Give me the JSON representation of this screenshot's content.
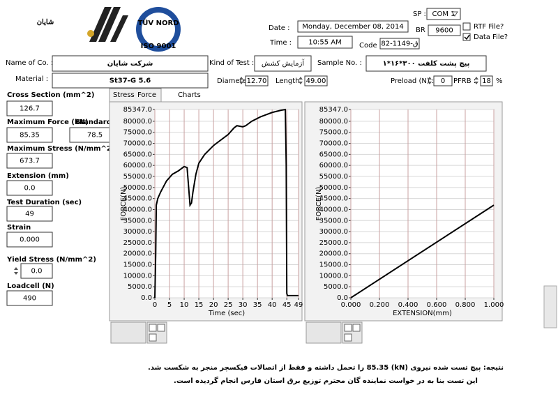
{
  "header": {
    "logo_text": "شایان",
    "tuv_text": "TÜV NORD",
    "iso_text": "ISO 9001"
  },
  "settings": {
    "date_label": "Date :",
    "date": "Monday, December 08, 2014",
    "time_label": "Time :",
    "time": "10:55 AM",
    "code_label": "Code :",
    "code": "82-1149-ق",
    "sp_label": "SP :",
    "sp": "COM 1",
    "br_label": "BR :",
    "br": "9600",
    "rtf_label": "RTF File?",
    "rtf_checked": false,
    "data_label": "Data File?",
    "data_checked": true
  },
  "sample": {
    "company_label": "Name of Co. :",
    "company": "شرکت شایان",
    "kind_label": "Kind of Test :",
    "kind": "آزمایش کشش",
    "sample_label": "Sample No. :",
    "sample": "پیچ پشت کلفت ۳۰۰*۱۶*۱",
    "material_label": "Material :",
    "material": "St37-G 5.6",
    "diameter_label": "Diameter",
    "diameter": "12.70",
    "length_label": "Length",
    "length": "49.00",
    "preload_label": "Preload (N) :",
    "preload": "0",
    "pfrb_label": "PFRB :",
    "pfrb": "18",
    "pfrb_unit": "%"
  },
  "tabs": [
    "Stress",
    "Force",
    "Charts"
  ],
  "results": [
    {
      "label": "Cross Section (mm^2)",
      "value": "126.7"
    },
    {
      "label": "Maximum Force (kN)",
      "value": "85.35"
    },
    {
      "label": "Standard (kN)",
      "value": "78.5"
    },
    {
      "label": "Maximum Stress (N/mm^2)",
      "value": "673.7"
    },
    {
      "label": "Extension (mm)",
      "value": "0.0"
    },
    {
      "label": "Test Duration (sec)",
      "value": "49"
    },
    {
      "label": "Strain",
      "value": "0.000"
    },
    {
      "label": "Yield Stress (N/mm^2)",
      "value": "0.0"
    },
    {
      "label": "Loadcell (N)",
      "value": "490"
    }
  ],
  "chart_data": [
    {
      "type": "line",
      "xlabel": "Time (sec)",
      "ylabel": "FORCE(N)",
      "color": "#000000",
      "grid": true,
      "x": [
        0,
        0.3,
        0.5,
        1,
        2,
        4,
        6,
        8,
        10,
        11,
        12,
        12.5,
        13,
        14,
        15,
        17,
        20,
        23,
        25,
        27,
        28,
        30,
        31,
        33,
        36,
        40,
        43,
        44.5,
        44.8,
        45,
        45.2,
        47,
        49
      ],
      "values": [
        0,
        20000,
        42000,
        45000,
        48000,
        53000,
        56000,
        57500,
        59500,
        59000,
        42000,
        43000,
        48000,
        56000,
        61000,
        65000,
        69000,
        72000,
        74000,
        77000,
        78000,
        77500,
        78000,
        80000,
        82000,
        84000,
        85000,
        85347,
        60000,
        2000,
        1000,
        1000,
        1000
      ],
      "xlim": [
        0,
        49
      ],
      "xticks": [
        0,
        5,
        10,
        15,
        20,
        25,
        30,
        35,
        40,
        45,
        49
      ],
      "ylim": [
        0,
        85347
      ],
      "yticks": [
        {
          "value": 0,
          "label": "0.0"
        },
        {
          "value": 5000,
          "label": "5000.0"
        },
        {
          "value": 10000,
          "label": "10000.0"
        },
        {
          "value": 15000,
          "label": "15000.0"
        },
        {
          "value": 20000,
          "label": "20000.0"
        },
        {
          "value": 25000,
          "label": "25000.0"
        },
        {
          "value": 30000,
          "label": "30000.0"
        },
        {
          "value": 35000,
          "label": "35000.0"
        },
        {
          "value": 40000,
          "label": "40000.0"
        },
        {
          "value": 45000,
          "label": "45000.0"
        },
        {
          "value": 50000,
          "label": "50000.0"
        },
        {
          "value": 55000,
          "label": "55000.0"
        },
        {
          "value": 60000,
          "label": "60000.0"
        },
        {
          "value": 65000,
          "label": "65000.0"
        },
        {
          "value": 70000,
          "label": "70000.0"
        },
        {
          "value": 75000,
          "label": "75000.0"
        },
        {
          "value": 80000,
          "label": "80000.0"
        },
        {
          "value": 85347,
          "label": "85347.0"
        }
      ]
    },
    {
      "type": "line",
      "xlabel": "EXTENSION(mm)",
      "ylabel": "FORCE(N)",
      "color": "#000000",
      "grid": true,
      "x": [
        0,
        1
      ],
      "values": [
        0,
        42000
      ],
      "xlim": [
        0,
        1
      ],
      "xticks": [
        {
          "value": 0,
          "label": "0.000"
        },
        {
          "value": 0.2,
          "label": "0.200"
        },
        {
          "value": 0.4,
          "label": "0.400"
        },
        {
          "value": 0.6,
          "label": "0.600"
        },
        {
          "value": 0.8,
          "label": "0.800"
        },
        {
          "value": 1,
          "label": "1.000"
        }
      ],
      "ylim": [
        0,
        85347
      ],
      "yticks": [
        {
          "value": 0,
          "label": "0.0"
        },
        {
          "value": 5000,
          "label": "5000.0"
        },
        {
          "value": 10000,
          "label": "10000.0"
        },
        {
          "value": 15000,
          "label": "15000.0"
        },
        {
          "value": 20000,
          "label": "20000.0"
        },
        {
          "value": 25000,
          "label": "25000.0"
        },
        {
          "value": 30000,
          "label": "30000.0"
        },
        {
          "value": 35000,
          "label": "35000.0"
        },
        {
          "value": 40000,
          "label": "40000.0"
        },
        {
          "value": 45000,
          "label": "45000.0"
        },
        {
          "value": 50000,
          "label": "50000.0"
        },
        {
          "value": 55000,
          "label": "55000.0"
        },
        {
          "value": 60000,
          "label": "60000.0"
        },
        {
          "value": 65000,
          "label": "65000.0"
        },
        {
          "value": 70000,
          "label": "70000.0"
        },
        {
          "value": 75000,
          "label": "75000.0"
        },
        {
          "value": 80000,
          "label": "80000.0"
        },
        {
          "value": 85347,
          "label": "85347.0"
        }
      ]
    }
  ],
  "footer": {
    "line1": "نتیجه: پیچ تست شده نیروی (kN) 85.35 را تحمل داشته  و فقط از اتصالات فیکسچر منجر به شکست شد.",
    "line2": "این تست بنا به در خواست نماینده گان محترم توزیع برق استان فارس انجام گردیده است."
  }
}
